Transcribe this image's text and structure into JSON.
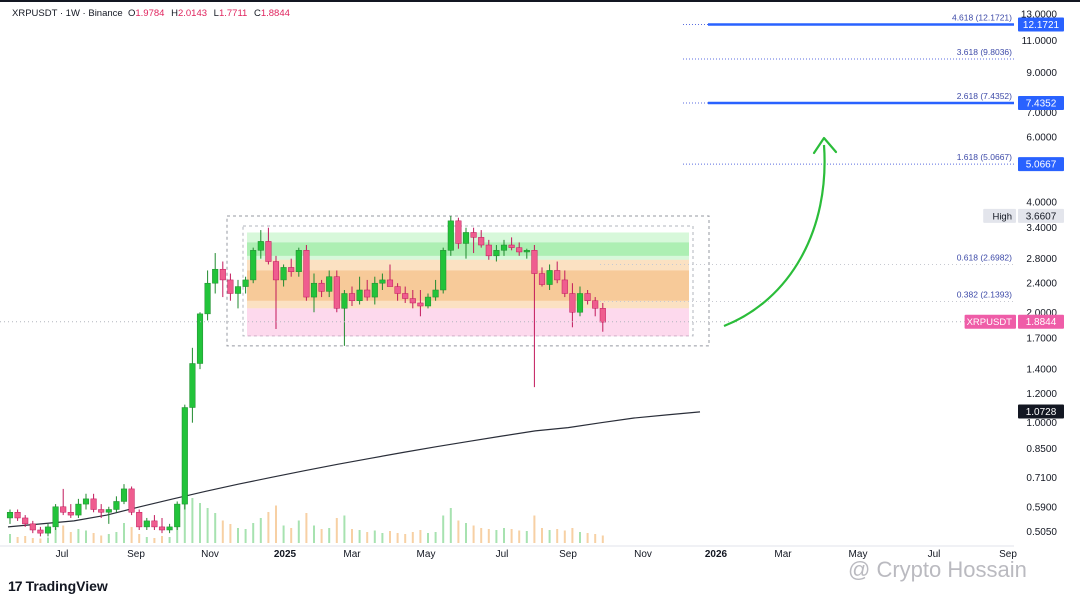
{
  "header": {
    "symbol": "XRPUSDT · 1W · Binance",
    "open_label": "O",
    "open": "1.9784",
    "high_label": "H",
    "high": "2.0143",
    "low_label": "L",
    "low": "1.7711",
    "close_label": "C",
    "close": "1.8844"
  },
  "branding": {
    "logo": "17",
    "name": "TradingView"
  },
  "watermark": "@ Crypto Hossain",
  "colors": {
    "up": "#22c33a",
    "down": "#ef5d8f",
    "arrow": "#2bbd3a",
    "fib_blue": "#2962ff"
  },
  "chart_data": {
    "type": "candlestick",
    "scale": "log",
    "ylim": [
      0.47,
      13.5
    ],
    "y_ticks": [
      "13.0000",
      "11.0000",
      "9.0000",
      "7.0000",
      "6.0000",
      "4.0000",
      "3.4000",
      "2.8000",
      "2.4000",
      "2.0000",
      "1.7000",
      "1.4000",
      "1.2000",
      "1.0000",
      "0.8500",
      "0.7100",
      "0.5900",
      "0.5050"
    ],
    "x_ticks": [
      "Jul",
      "Sep",
      "Nov",
      "2025",
      "Mar",
      "May",
      "Jul",
      "Sep",
      "Nov",
      "2026",
      "Mar",
      "May",
      "Jul",
      "Sep"
    ],
    "price_tags": [
      {
        "label": "",
        "value": "12.1721",
        "style": "blue"
      },
      {
        "label": "",
        "value": "7.4352",
        "style": "blue"
      },
      {
        "label": "",
        "value": "5.0667",
        "style": "blue"
      },
      {
        "label": "High",
        "value": "3.6607",
        "style": "light"
      },
      {
        "label": "XRPUSDT",
        "value": "1.8844",
        "style": "pink"
      },
      {
        "label": "",
        "value": "1.0728",
        "style": "dark"
      }
    ],
    "fib_levels": [
      {
        "label": "4.618 (12.1721)",
        "value": 12.1721
      },
      {
        "label": "3.618 (9.8036)",
        "value": 9.8036
      },
      {
        "label": "2.618 (7.4352)",
        "value": 7.4352
      },
      {
        "label": "1.618 (5.0667)",
        "value": 5.0667
      },
      {
        "label": "0.618 (2.6982)",
        "value": 2.6982
      },
      {
        "label": "0.382 (2.1393)",
        "value": 2.1393
      }
    ],
    "range_box": {
      "high": 3.66,
      "low": 1.62
    },
    "moving_average": [
      0.52,
      0.53,
      0.54,
      0.56,
      0.59,
      0.62,
      0.65,
      0.68,
      0.71,
      0.74,
      0.77,
      0.8,
      0.83,
      0.86,
      0.89,
      0.92,
      0.95,
      0.97,
      1.0,
      1.03,
      1.05,
      1.07
    ],
    "candles": [
      [
        0.55,
        0.58,
        0.53,
        0.57
      ],
      [
        0.57,
        0.58,
        0.54,
        0.55
      ],
      [
        0.55,
        0.56,
        0.52,
        0.53
      ],
      [
        0.53,
        0.54,
        0.5,
        0.51
      ],
      [
        0.51,
        0.52,
        0.49,
        0.5
      ],
      [
        0.5,
        0.53,
        0.49,
        0.52
      ],
      [
        0.52,
        0.6,
        0.51,
        0.59
      ],
      [
        0.59,
        0.66,
        0.56,
        0.57
      ],
      [
        0.57,
        0.6,
        0.55,
        0.56
      ],
      [
        0.56,
        0.62,
        0.55,
        0.6
      ],
      [
        0.6,
        0.64,
        0.58,
        0.62
      ],
      [
        0.62,
        0.64,
        0.57,
        0.58
      ],
      [
        0.58,
        0.6,
        0.55,
        0.57
      ],
      [
        0.57,
        0.59,
        0.53,
        0.58
      ],
      [
        0.58,
        0.63,
        0.57,
        0.61
      ],
      [
        0.61,
        0.68,
        0.6,
        0.66
      ],
      [
        0.66,
        0.67,
        0.56,
        0.57
      ],
      [
        0.57,
        0.58,
        0.51,
        0.52
      ],
      [
        0.52,
        0.55,
        0.51,
        0.54
      ],
      [
        0.54,
        0.56,
        0.51,
        0.52
      ],
      [
        0.52,
        0.55,
        0.5,
        0.51
      ],
      [
        0.51,
        0.53,
        0.5,
        0.52
      ],
      [
        0.52,
        0.61,
        0.51,
        0.6
      ],
      [
        0.6,
        1.12,
        0.58,
        1.1
      ],
      [
        1.1,
        1.6,
        1.0,
        1.45
      ],
      [
        1.45,
        2.0,
        1.4,
        1.98
      ],
      [
        1.98,
        2.6,
        1.9,
        2.4
      ],
      [
        2.4,
        2.9,
        2.25,
        2.62
      ],
      [
        2.62,
        2.75,
        2.2,
        2.45
      ],
      [
        2.45,
        2.55,
        2.15,
        2.25
      ],
      [
        2.25,
        2.45,
        2.05,
        2.35
      ],
      [
        2.35,
        2.5,
        2.25,
        2.45
      ],
      [
        2.45,
        3.0,
        2.4,
        2.95
      ],
      [
        2.95,
        3.35,
        2.8,
        3.12
      ],
      [
        3.12,
        3.4,
        2.7,
        2.75
      ],
      [
        2.75,
        2.85,
        1.8,
        2.45
      ],
      [
        2.45,
        2.7,
        2.35,
        2.65
      ],
      [
        2.65,
        2.8,
        2.5,
        2.58
      ],
      [
        2.58,
        3.0,
        2.5,
        2.95
      ],
      [
        2.95,
        3.05,
        2.15,
        2.2
      ],
      [
        2.2,
        2.55,
        2.0,
        2.4
      ],
      [
        2.4,
        2.45,
        2.2,
        2.28
      ],
      [
        2.28,
        2.6,
        2.2,
        2.5
      ],
      [
        2.5,
        2.6,
        2.0,
        2.05
      ],
      [
        2.05,
        2.3,
        1.62,
        2.25
      ],
      [
        2.25,
        2.35,
        2.08,
        2.15
      ],
      [
        2.15,
        2.5,
        2.1,
        2.3
      ],
      [
        2.3,
        2.45,
        2.15,
        2.2
      ],
      [
        2.2,
        2.5,
        2.1,
        2.4
      ],
      [
        2.4,
        2.55,
        2.3,
        2.45
      ],
      [
        2.45,
        2.7,
        2.35,
        2.35
      ],
      [
        2.35,
        2.4,
        2.15,
        2.25
      ],
      [
        2.25,
        2.35,
        2.12,
        2.18
      ],
      [
        2.18,
        2.3,
        2.05,
        2.12
      ],
      [
        2.12,
        2.3,
        1.95,
        2.08
      ],
      [
        2.08,
        2.25,
        2.05,
        2.2
      ],
      [
        2.2,
        2.45,
        2.15,
        2.3
      ],
      [
        2.3,
        3.0,
        2.25,
        2.95
      ],
      [
        2.95,
        3.66,
        2.85,
        3.55
      ],
      [
        3.55,
        3.62,
        2.98,
        3.08
      ],
      [
        3.08,
        3.4,
        2.8,
        3.3
      ],
      [
        3.3,
        3.4,
        2.9,
        3.2
      ],
      [
        3.2,
        3.35,
        3.0,
        3.05
      ],
      [
        3.05,
        3.15,
        2.78,
        2.85
      ],
      [
        2.85,
        3.05,
        2.75,
        2.95
      ],
      [
        2.95,
        3.15,
        2.85,
        3.05
      ],
      [
        3.05,
        3.2,
        2.95,
        3.0
      ],
      [
        3.0,
        3.1,
        2.85,
        2.92
      ],
      [
        2.92,
        2.98,
        2.8,
        2.95
      ],
      [
        2.95,
        3.05,
        1.25,
        2.55
      ],
      [
        2.55,
        2.65,
        2.35,
        2.38
      ],
      [
        2.38,
        2.7,
        2.3,
        2.6
      ],
      [
        2.6,
        2.75,
        2.4,
        2.45
      ],
      [
        2.45,
        2.6,
        2.2,
        2.25
      ],
      [
        2.25,
        2.4,
        1.82,
        2.0
      ],
      [
        2.0,
        2.35,
        1.95,
        2.25
      ],
      [
        2.25,
        2.3,
        2.1,
        2.15
      ],
      [
        2.15,
        2.2,
        1.95,
        2.05
      ],
      [
        2.05,
        2.12,
        1.77,
        1.88
      ]
    ],
    "volumes": [
      0.18,
      0.12,
      0.14,
      0.1,
      0.09,
      0.11,
      0.3,
      0.35,
      0.22,
      0.28,
      0.25,
      0.2,
      0.15,
      0.18,
      0.22,
      0.4,
      0.32,
      0.18,
      0.12,
      0.1,
      0.14,
      0.12,
      0.55,
      0.95,
      0.9,
      0.8,
      0.7,
      0.6,
      0.45,
      0.38,
      0.3,
      0.28,
      0.4,
      0.5,
      0.62,
      0.75,
      0.35,
      0.3,
      0.45,
      0.6,
      0.35,
      0.28,
      0.3,
      0.5,
      0.55,
      0.28,
      0.26,
      0.22,
      0.25,
      0.2,
      0.24,
      0.2,
      0.18,
      0.22,
      0.26,
      0.2,
      0.22,
      0.55,
      0.7,
      0.45,
      0.4,
      0.35,
      0.3,
      0.28,
      0.26,
      0.3,
      0.28,
      0.25,
      0.24,
      0.55,
      0.3,
      0.26,
      0.28,
      0.25,
      0.3,
      0.22,
      0.2,
      0.18,
      0.15
    ]
  }
}
